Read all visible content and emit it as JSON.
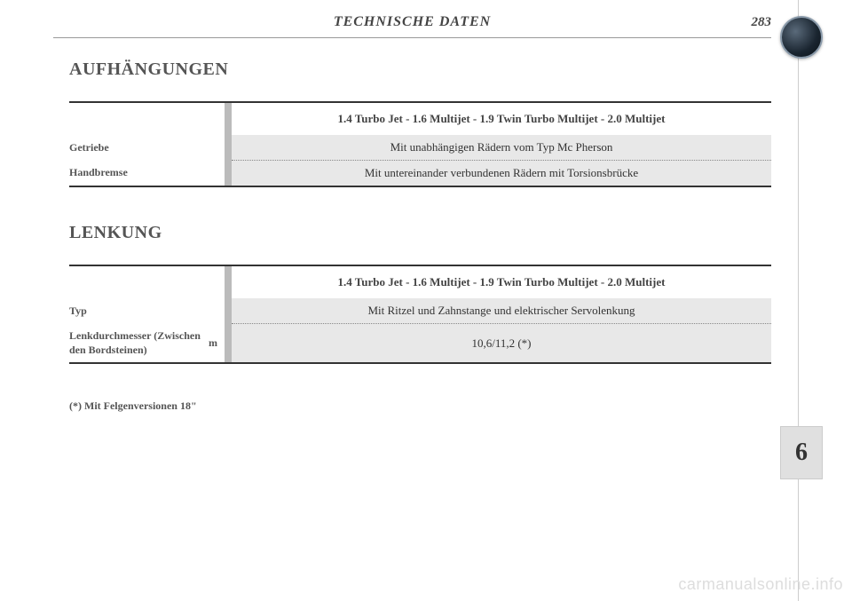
{
  "header": {
    "title": "TECHNISCHE DATEN",
    "page_number": "283"
  },
  "sections": {
    "suspension": {
      "title": "AUFHÄNGUNGEN",
      "engines_header": "1.4 Turbo Jet - 1.6 Multijet - 1.9 Twin Turbo Multijet - 2.0 Multijet",
      "rows": {
        "front": {
          "label": "Getriebe",
          "value": "Mit unabhängigen Rädern vom Typ Mc Pherson"
        },
        "rear": {
          "label": "Handbremse",
          "value": "Mit untereinander verbundenen Rädern mit Torsionsbrücke"
        }
      }
    },
    "steering": {
      "title": "LENKUNG",
      "engines_header": "1.4 Turbo Jet - 1.6 Multijet - 1.9 Twin Turbo Multijet - 2.0 Multijet",
      "rows": {
        "type": {
          "label": "Typ",
          "value": "Mit Ritzel und Zahnstange und elektrischer Servolenkung"
        },
        "turning": {
          "label": "Lenkdurchmesser (Zwischen den Bordsteinen)",
          "unit": "m",
          "value": "10,6/11,2 (*)"
        }
      }
    }
  },
  "footnote": "(*) Mit Felgenversionen 18\"",
  "chapter_tab": "6",
  "watermark": "carmanualsonline.info"
}
